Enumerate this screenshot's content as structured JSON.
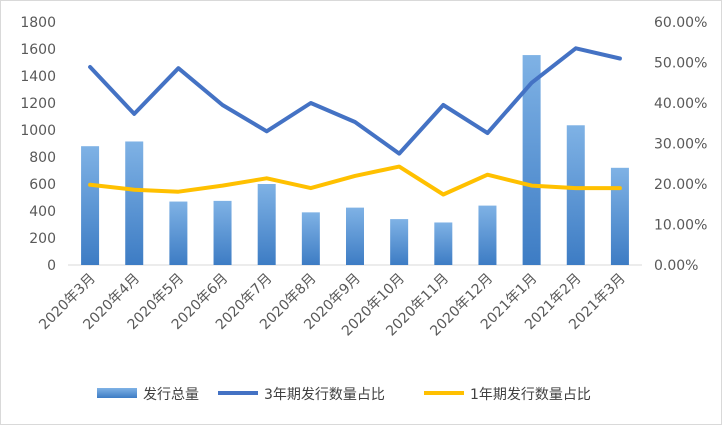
{
  "chart_data": {
    "type": "bar",
    "title": "",
    "xlabel": "",
    "ylabel": "",
    "categories": [
      "2020年3月",
      "2020年4月",
      "2020年5月",
      "2020年6月",
      "2020年7月",
      "2020年8月",
      "2020年9月",
      "2020年10月",
      "2020年11月",
      "2020年12月",
      "2021年1月",
      "2021年2月",
      "2021年3月"
    ],
    "ylim": [
      0,
      1800
    ],
    "y_ticks": [
      "0",
      "200",
      "400",
      "600",
      "800",
      "1000",
      "1200",
      "1400",
      "1600",
      "1800"
    ],
    "y2lim": [
      0,
      60
    ],
    "y2_ticks": [
      "0.00%",
      "10.00%",
      "20.00%",
      "30.00%",
      "40.00%",
      "50.00%",
      "60.00%"
    ],
    "grid": false,
    "legend_position": "bottom",
    "series": [
      {
        "name": "发行总量",
        "type": "bar",
        "axis": "left",
        "color": "#5b9bd5",
        "values": [
          880,
          915,
          470,
          475,
          600,
          390,
          425,
          340,
          315,
          440,
          1555,
          1035,
          720
        ]
      },
      {
        "name": "3年期发行数量占比",
        "type": "line",
        "axis": "right",
        "color": "#4472c4",
        "values": [
          48.9,
          37.3,
          48.6,
          39.5,
          33.0,
          40.0,
          35.3,
          27.5,
          39.5,
          32.6,
          45.0,
          53.5,
          51.0
        ]
      },
      {
        "name": "1年期发行数量占比",
        "type": "line",
        "axis": "right",
        "color": "#ffc000",
        "values": [
          19.8,
          18.6,
          18.1,
          19.6,
          21.4,
          19.0,
          22.0,
          24.3,
          17.4,
          22.3,
          19.6,
          19.0,
          19.0
        ]
      }
    ]
  }
}
